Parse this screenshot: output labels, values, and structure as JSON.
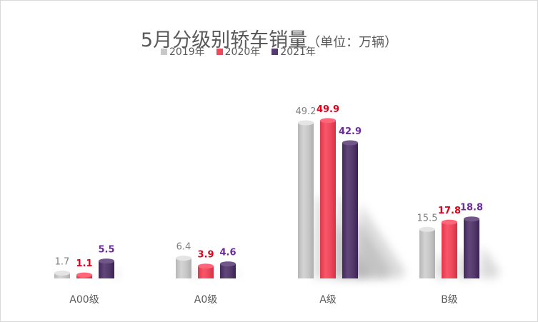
{
  "chart_data": {
    "type": "bar",
    "title": "5月分级别轿车销量",
    "subtitle": "（单位：万辆）",
    "categories": [
      "A00级",
      "A0级",
      "A级",
      "B级"
    ],
    "series": [
      {
        "name": "2019年",
        "color": "#c8c8c8",
        "label_color": "#7f7f7f",
        "values": [
          1.7,
          6.4,
          49.2,
          15.5
        ]
      },
      {
        "name": "2020年",
        "color": "#ee4a5e",
        "label_color": "#e0001c",
        "values": [
          1.1,
          3.9,
          49.9,
          17.8
        ]
      },
      {
        "name": "2021年",
        "color": "#553a6e",
        "label_color": "#6b2c9c",
        "values": [
          5.5,
          4.6,
          42.9,
          18.8
        ]
      }
    ],
    "ylim": [
      0,
      50
    ],
    "grid": false,
    "legend_position": "top-center"
  }
}
